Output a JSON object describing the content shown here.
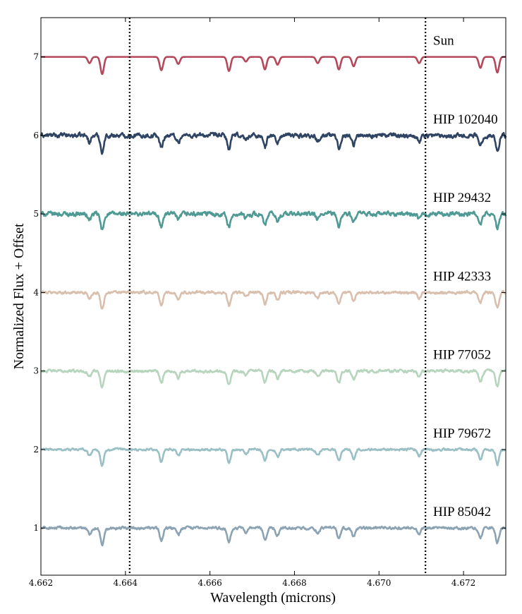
{
  "chart_data": {
    "type": "line",
    "title": "",
    "xlabel": "Wavelength (microns)",
    "ylabel": "Normalized Flux + Offset",
    "xlim": [
      4.662,
      4.673
    ],
    "ylim": [
      0.4,
      7.5
    ],
    "xticks": [
      4.662,
      4.664,
      4.666,
      4.668,
      4.67,
      4.672
    ],
    "xtick_labels": [
      "4.662",
      "4.664",
      "4.666",
      "4.668",
      "4.670",
      "4.672"
    ],
    "yticks": [
      1,
      2,
      3,
      4,
      5,
      6,
      7
    ],
    "ytick_labels": [
      "1",
      "2",
      "3",
      "4",
      "5",
      "6",
      "7"
    ],
    "grid": false,
    "legend": "labels placed at right end of each series",
    "vlines": [
      4.6641,
      4.6711
    ],
    "vline_style": "dotted",
    "absorption_lines": [
      {
        "x": 4.66315,
        "depth": 0.08
      },
      {
        "x": 4.66345,
        "depth": 0.22
      },
      {
        "x": 4.66485,
        "depth": 0.17
      },
      {
        "x": 4.66525,
        "depth": 0.09
      },
      {
        "x": 4.66645,
        "depth": 0.18
      },
      {
        "x": 4.66685,
        "depth": 0.06
      },
      {
        "x": 4.6673,
        "depth": 0.16
      },
      {
        "x": 4.6676,
        "depth": 0.1
      },
      {
        "x": 4.66855,
        "depth": 0.08
      },
      {
        "x": 4.66905,
        "depth": 0.16
      },
      {
        "x": 4.6694,
        "depth": 0.12
      },
      {
        "x": 4.67095,
        "depth": 0.08
      },
      {
        "x": 4.6724,
        "depth": 0.14
      },
      {
        "x": 4.6728,
        "depth": 0.2
      }
    ],
    "series": [
      {
        "name": "Sun",
        "offset": 7,
        "noise": 0.0,
        "color": "#b5495b"
      },
      {
        "name": "HIP 102040",
        "offset": 6,
        "noise": 0.05,
        "color": "#2f4463"
      },
      {
        "name": "HIP 29432",
        "offset": 5,
        "noise": 0.05,
        "color": "#4f9a94"
      },
      {
        "name": "HIP 42333",
        "offset": 4,
        "noise": 0.03,
        "color": "#d9bfad"
      },
      {
        "name": "HIP 77052",
        "offset": 3,
        "noise": 0.03,
        "color": "#b7d5bd"
      },
      {
        "name": "HIP 79672",
        "offset": 2,
        "noise": 0.025,
        "color": "#9ac0c6"
      },
      {
        "name": "HIP 85042",
        "offset": 1,
        "noise": 0.03,
        "color": "#8ca3b3"
      }
    ]
  }
}
